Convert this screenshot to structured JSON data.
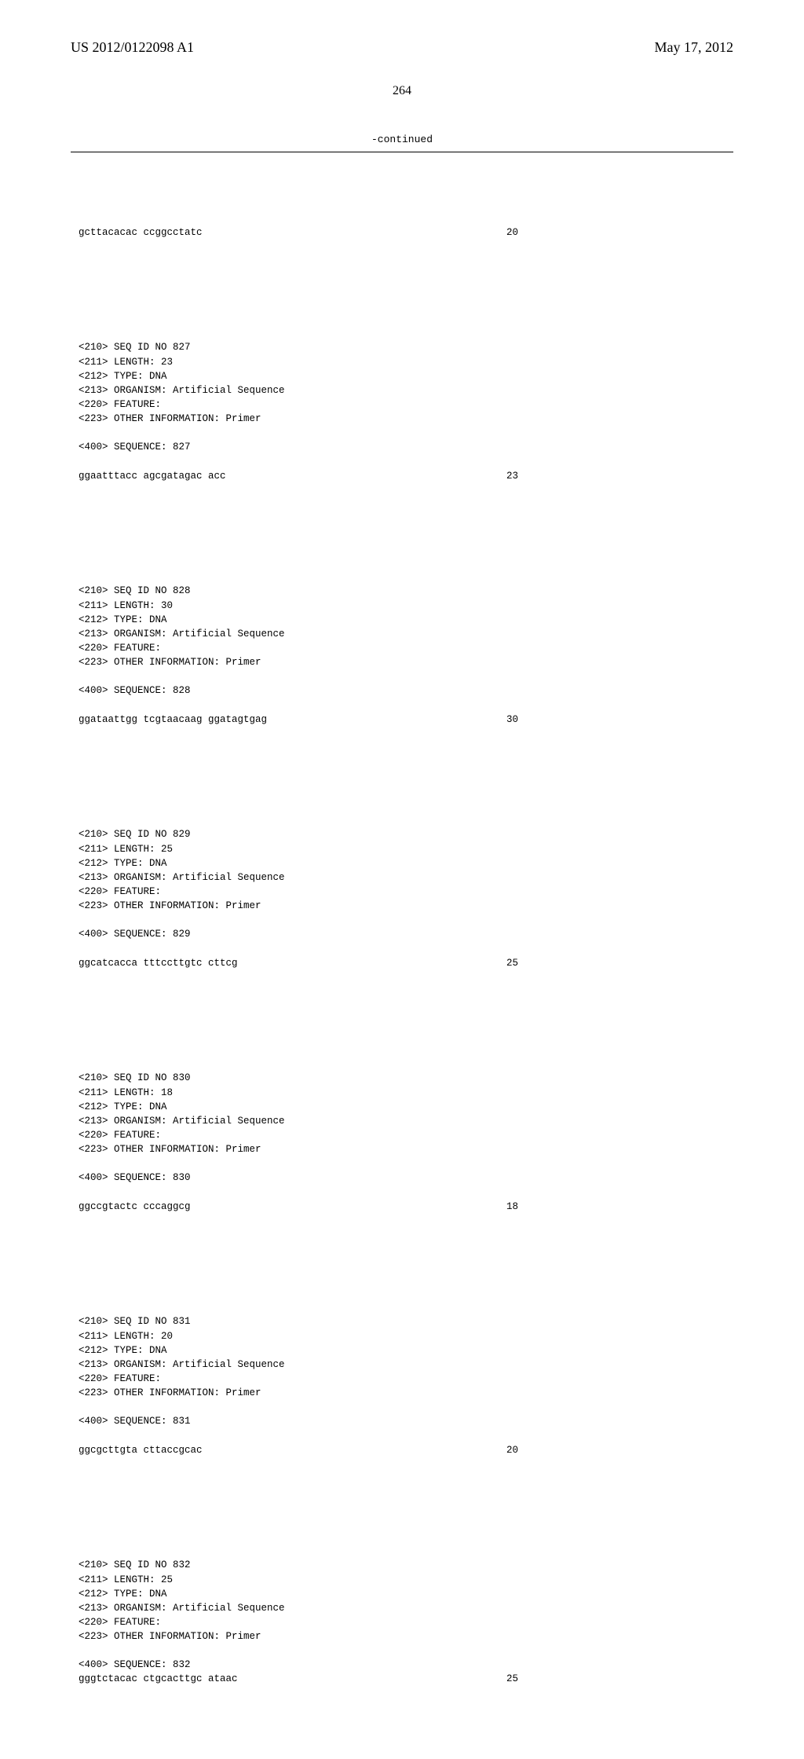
{
  "header": {
    "left": "US 2012/0122098 A1",
    "right": "May 17, 2012"
  },
  "page_number": "264",
  "continued": "-continued",
  "entries": [
    {
      "sequence_line": "gcttacacac ccggcctatc",
      "sequence_num": "20",
      "has_seq_before_meta": true
    },
    {
      "meta": [
        "<210> SEQ ID NO 827",
        "<211> LENGTH: 23",
        "<212> TYPE: DNA",
        "<213> ORGANISM: Artificial Sequence",
        "<220> FEATURE:",
        "<223> OTHER INFORMATION: Primer"
      ],
      "sequence_label": "<400> SEQUENCE: 827",
      "sequence_line": "ggaatttacc agcgatagac acc",
      "sequence_num": "23"
    },
    {
      "meta": [
        "<210> SEQ ID NO 828",
        "<211> LENGTH: 30",
        "<212> TYPE: DNA",
        "<213> ORGANISM: Artificial Sequence",
        "<220> FEATURE:",
        "<223> OTHER INFORMATION: Primer"
      ],
      "sequence_label": "<400> SEQUENCE: 828",
      "sequence_line": "ggataattgg tcgtaacaag ggatagtgag",
      "sequence_num": "30"
    },
    {
      "meta": [
        "<210> SEQ ID NO 829",
        "<211> LENGTH: 25",
        "<212> TYPE: DNA",
        "<213> ORGANISM: Artificial Sequence",
        "<220> FEATURE:",
        "<223> OTHER INFORMATION: Primer"
      ],
      "sequence_label": "<400> SEQUENCE: 829",
      "sequence_line": "ggcatcacca tttccttgtc cttcg",
      "sequence_num": "25"
    },
    {
      "meta": [
        "<210> SEQ ID NO 830",
        "<211> LENGTH: 18",
        "<212> TYPE: DNA",
        "<213> ORGANISM: Artificial Sequence",
        "<220> FEATURE:",
        "<223> OTHER INFORMATION: Primer"
      ],
      "sequence_label": "<400> SEQUENCE: 830",
      "sequence_line": "ggccgtactc cccaggcg",
      "sequence_num": "18"
    },
    {
      "meta": [
        "<210> SEQ ID NO 831",
        "<211> LENGTH: 20",
        "<212> TYPE: DNA",
        "<213> ORGANISM: Artificial Sequence",
        "<220> FEATURE:",
        "<223> OTHER INFORMATION: Primer"
      ],
      "sequence_label": "<400> SEQUENCE: 831",
      "sequence_line": "ggcgcttgta cttaccgcac",
      "sequence_num": "20"
    },
    {
      "meta": [
        "<210> SEQ ID NO 832",
        "<211> LENGTH: 25",
        "<212> TYPE: DNA",
        "<213> ORGANISM: Artificial Sequence",
        "<220> FEATURE:",
        "<223> OTHER INFORMATION: Primer"
      ],
      "sequence_label": "<400> SEQUENCE: 832",
      "sequence_line": "gggtctacac ctgcacttgc ataac",
      "sequence_num": "25"
    }
  ]
}
